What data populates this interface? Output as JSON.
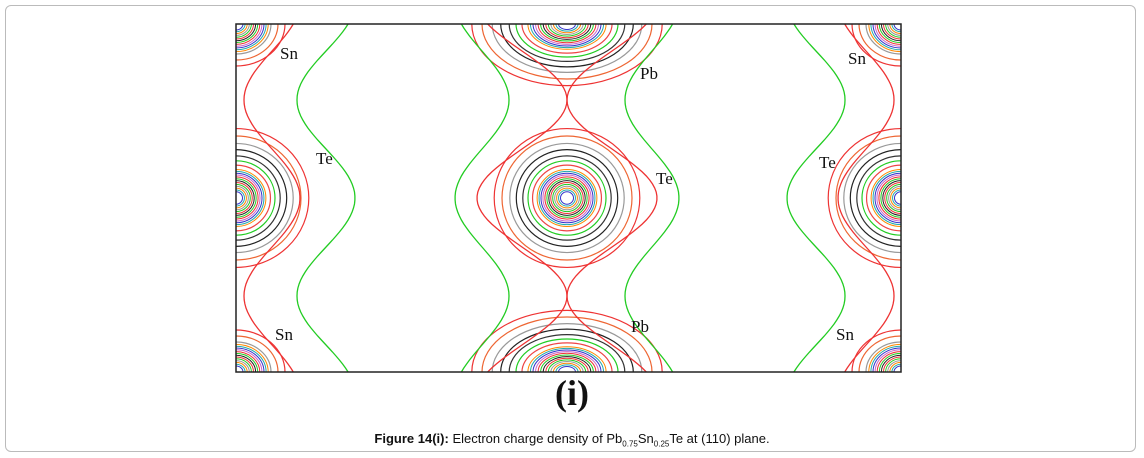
{
  "figure": {
    "atom_labels": [
      "Sn",
      "Sn",
      "Pb",
      "Te",
      "Te",
      "Te",
      "Sn",
      "Pb",
      "Sn"
    ],
    "panel_label": "(i)",
    "caption": {
      "label": "Figure 14(i):",
      "text": "Electron charge density of Pb",
      "sub1": "0.75",
      "mid": "Sn",
      "sub2": "0.25",
      "end": "Te at (110) plane."
    }
  }
}
